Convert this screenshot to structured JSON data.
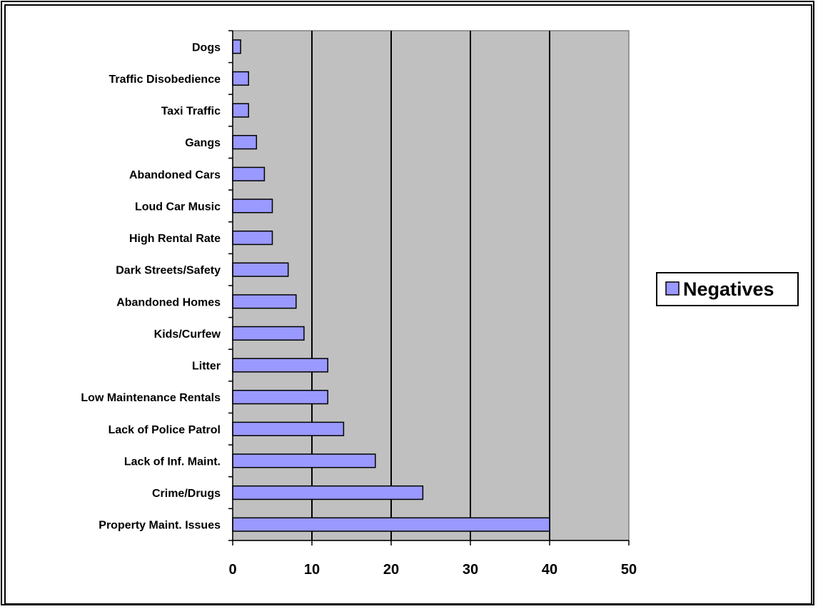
{
  "chart_data": {
    "type": "bar",
    "orientation": "horizontal",
    "categories": [
      "Dogs",
      "Traffic Disobedience",
      "Taxi Traffic",
      "Gangs",
      "Abandoned Cars",
      "Loud Car Music",
      "High Rental Rate",
      "Dark Streets/Safety",
      "Abandoned Homes",
      "Kids/Curfew",
      "Litter",
      "Low Maintenance Rentals",
      "Lack of Police Patrol",
      "Lack of Inf. Maint.",
      "Crime/Drugs",
      "Property Maint. Issues"
    ],
    "series": [
      {
        "name": "Negatives",
        "values": [
          1,
          2,
          2,
          3,
          4,
          5,
          5,
          7,
          8,
          9,
          12,
          12,
          14,
          18,
          24,
          40
        ]
      }
    ],
    "xlim": [
      0,
      50
    ],
    "xticks": [
      "0",
      "10",
      "20",
      "30",
      "40",
      "50"
    ],
    "grid": "vertical",
    "legend": "right",
    "colors": {
      "bar": "#9999ff",
      "plot_background": "#c0c0c0"
    }
  }
}
